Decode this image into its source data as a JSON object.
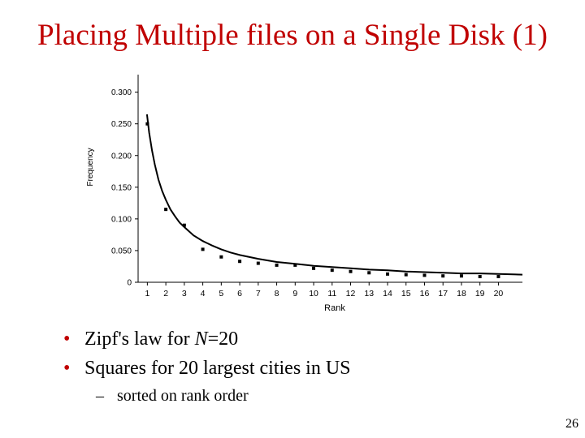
{
  "slide": {
    "title": "Placing Multiple files on a Single Disk (1)",
    "bullets": [
      {
        "pre": "Zipf's law for ",
        "em": "N",
        "post": "=20"
      },
      {
        "pre": "Squares for 20 largest cities in US"
      }
    ],
    "sub_bullet": "sorted on rank order",
    "page_number": "26",
    "colors": {
      "title": "#c00000",
      "bullet": "#c00000"
    }
  },
  "chart_data": {
    "type": "scatter",
    "title": "",
    "xlabel": "Rank",
    "ylabel": "Frequency",
    "x": [
      1,
      2,
      3,
      4,
      5,
      6,
      7,
      8,
      9,
      10,
      11,
      12,
      13,
      14,
      15,
      16,
      17,
      18,
      19,
      20
    ],
    "series": [
      {
        "kind": "squares",
        "values": [
          0.25,
          0.115,
          0.09,
          0.052,
          0.04,
          0.033,
          0.03,
          0.027,
          0.027,
          0.022,
          0.019,
          0.017,
          0.015,
          0.013,
          0.012,
          0.011,
          0.01,
          0.01,
          0.009,
          0.009
        ]
      },
      {
        "kind": "curve",
        "function": "Zipf, N=20",
        "x": [
          0.98,
          1.1,
          1.25,
          1.4,
          1.6,
          1.8,
          2,
          2.25,
          2.5,
          2.75,
          3,
          3.5,
          4,
          4.5,
          5,
          5.5,
          6,
          7,
          8,
          9,
          10,
          11,
          12,
          13,
          14,
          15,
          16,
          17,
          18,
          19,
          20,
          21.3
        ],
        "values": [
          0.265,
          0.236,
          0.208,
          0.186,
          0.162,
          0.144,
          0.13,
          0.115,
          0.104,
          0.094,
          0.087,
          0.074,
          0.065,
          0.058,
          0.052,
          0.047,
          0.043,
          0.037,
          0.032,
          0.029,
          0.026,
          0.024,
          0.022,
          0.02,
          0.019,
          0.017,
          0.016,
          0.015,
          0.014,
          0.014,
          0.013,
          0.012
        ]
      }
    ],
    "y_ticks": [
      "0",
      "0.050",
      "0.100",
      "0.150",
      "0.200",
      "0.250",
      "0.300"
    ],
    "x_ticks": [
      "1",
      "2",
      "3",
      "4",
      "5",
      "6",
      "7",
      "8",
      "9",
      "10",
      "11",
      "12",
      "13",
      "14",
      "15",
      "16",
      "17",
      "18",
      "19",
      "20"
    ],
    "xlim": [
      0.5,
      21.3
    ],
    "ylim": [
      0,
      0.32
    ],
    "grid": false,
    "legend": "none"
  }
}
